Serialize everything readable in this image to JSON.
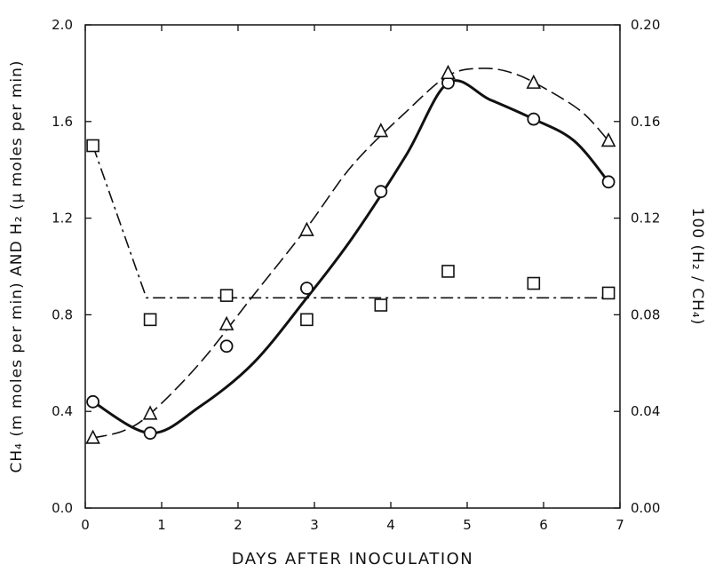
{
  "chart_data": {
    "type": "line",
    "xlabel": "DAYS AFTER INOCULATION",
    "ylabel_left": "CH₄ (m moles per min) AND H₂ (μ moles per min)",
    "ylabel_right": "100 (H₂ / CH₄)",
    "xlim": [
      0,
      7
    ],
    "ylim_left": [
      0.0,
      2.0
    ],
    "ylim_right": [
      0.0,
      0.2
    ],
    "x_ticks": [
      "0",
      "1",
      "2",
      "3",
      "4",
      "5",
      "6",
      "7"
    ],
    "y_left_ticks": [
      "0.0",
      "0.4",
      "0.8",
      "1.2",
      "1.6",
      "2.0"
    ],
    "y_right_ticks": [
      "0.00",
      "0.04",
      "0.08",
      "0.12",
      "0.16",
      "0.20"
    ],
    "grid": false,
    "series": [
      {
        "marker": "circle",
        "line_style": "solid-thick",
        "axis": "left",
        "x": [
          0.1,
          0.85,
          1.85,
          2.9,
          3.87,
          4.75,
          5.87,
          6.85
        ],
        "y": [
          0.44,
          0.31,
          0.67,
          0.91,
          1.31,
          1.76,
          1.61,
          1.35
        ]
      },
      {
        "marker": "triangle",
        "line_style": "long-dash",
        "axis": "left",
        "x": [
          0.1,
          0.85,
          1.85,
          2.9,
          3.87,
          4.75,
          5.87,
          6.85
        ],
        "y": [
          0.29,
          0.39,
          0.76,
          1.15,
          1.56,
          1.8,
          1.76,
          1.52
        ]
      },
      {
        "marker": "square",
        "line_style": "dash-dot",
        "axis": "right",
        "x": [
          0.1,
          0.85,
          1.85,
          2.9,
          3.87,
          4.75,
          5.87,
          6.85
        ],
        "y": [
          0.15,
          0.078,
          0.088,
          0.078,
          0.084,
          0.098,
          0.093,
          0.089
        ]
      }
    ],
    "fit_lines": {
      "circle_curve": [
        [
          0.1,
          0.44
        ],
        [
          0.85,
          0.31
        ],
        [
          1.5,
          0.42
        ],
        [
          2.2,
          0.6
        ],
        [
          2.9,
          0.87
        ],
        [
          3.5,
          1.12
        ],
        [
          4.2,
          1.46
        ],
        [
          4.75,
          1.76
        ],
        [
          5.3,
          1.69
        ],
        [
          5.87,
          1.61
        ],
        [
          6.4,
          1.52
        ],
        [
          6.85,
          1.35
        ]
      ],
      "triangle_curve": [
        [
          0.1,
          0.29
        ],
        [
          0.5,
          0.32
        ],
        [
          0.85,
          0.39
        ],
        [
          1.5,
          0.6
        ],
        [
          2.2,
          0.88
        ],
        [
          2.9,
          1.16
        ],
        [
          3.5,
          1.42
        ],
        [
          4.2,
          1.64
        ],
        [
          4.75,
          1.79
        ],
        [
          5.2,
          1.82
        ],
        [
          5.6,
          1.8
        ],
        [
          6.0,
          1.74
        ],
        [
          6.5,
          1.64
        ],
        [
          6.85,
          1.52
        ]
      ],
      "square_line": [
        [
          0.1,
          0.15
        ],
        [
          0.8,
          0.087
        ],
        [
          6.85,
          0.087
        ]
      ]
    }
  }
}
